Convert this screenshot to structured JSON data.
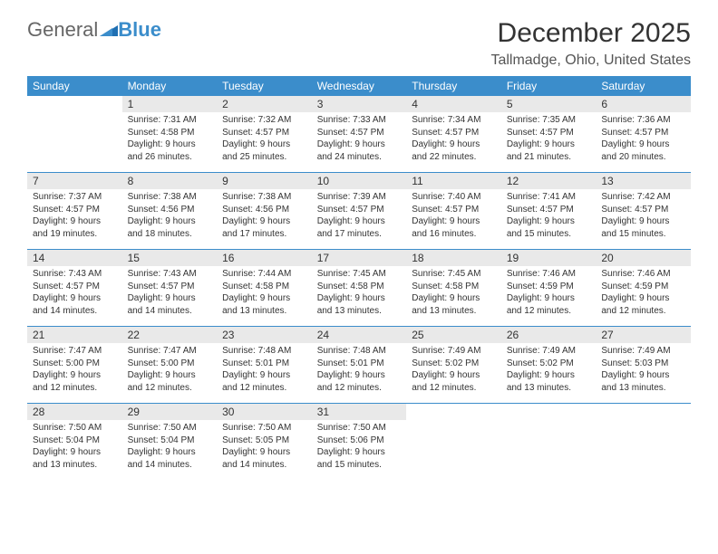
{
  "logo": {
    "general": "General",
    "blue": "Blue"
  },
  "title": "December 2025",
  "location": "Tallmadge, Ohio, United States",
  "colors": {
    "header_bg": "#3b8dcb",
    "header_fg": "#ffffff",
    "num_bg": "#e9e9e9",
    "divider": "#3b8dcb",
    "text": "#333333",
    "page_bg": "#ffffff"
  },
  "fonts": {
    "title_size": 30,
    "location_size": 16,
    "dow_size": 12,
    "daynum_size": 12,
    "body_size": 10
  },
  "dow": [
    "Sunday",
    "Monday",
    "Tuesday",
    "Wednesday",
    "Thursday",
    "Friday",
    "Saturday"
  ],
  "weeks": [
    {
      "nums": [
        "",
        "1",
        "2",
        "3",
        "4",
        "5",
        "6"
      ],
      "cells": [
        "",
        "Sunrise: 7:31 AM\nSunset: 4:58 PM\nDaylight: 9 hours and 26 minutes.",
        "Sunrise: 7:32 AM\nSunset: 4:57 PM\nDaylight: 9 hours and 25 minutes.",
        "Sunrise: 7:33 AM\nSunset: 4:57 PM\nDaylight: 9 hours and 24 minutes.",
        "Sunrise: 7:34 AM\nSunset: 4:57 PM\nDaylight: 9 hours and 22 minutes.",
        "Sunrise: 7:35 AM\nSunset: 4:57 PM\nDaylight: 9 hours and 21 minutes.",
        "Sunrise: 7:36 AM\nSunset: 4:57 PM\nDaylight: 9 hours and 20 minutes."
      ]
    },
    {
      "nums": [
        "7",
        "8",
        "9",
        "10",
        "11",
        "12",
        "13"
      ],
      "cells": [
        "Sunrise: 7:37 AM\nSunset: 4:57 PM\nDaylight: 9 hours and 19 minutes.",
        "Sunrise: 7:38 AM\nSunset: 4:56 PM\nDaylight: 9 hours and 18 minutes.",
        "Sunrise: 7:38 AM\nSunset: 4:56 PM\nDaylight: 9 hours and 17 minutes.",
        "Sunrise: 7:39 AM\nSunset: 4:57 PM\nDaylight: 9 hours and 17 minutes.",
        "Sunrise: 7:40 AM\nSunset: 4:57 PM\nDaylight: 9 hours and 16 minutes.",
        "Sunrise: 7:41 AM\nSunset: 4:57 PM\nDaylight: 9 hours and 15 minutes.",
        "Sunrise: 7:42 AM\nSunset: 4:57 PM\nDaylight: 9 hours and 15 minutes."
      ]
    },
    {
      "nums": [
        "14",
        "15",
        "16",
        "17",
        "18",
        "19",
        "20"
      ],
      "cells": [
        "Sunrise: 7:43 AM\nSunset: 4:57 PM\nDaylight: 9 hours and 14 minutes.",
        "Sunrise: 7:43 AM\nSunset: 4:57 PM\nDaylight: 9 hours and 14 minutes.",
        "Sunrise: 7:44 AM\nSunset: 4:58 PM\nDaylight: 9 hours and 13 minutes.",
        "Sunrise: 7:45 AM\nSunset: 4:58 PM\nDaylight: 9 hours and 13 minutes.",
        "Sunrise: 7:45 AM\nSunset: 4:58 PM\nDaylight: 9 hours and 13 minutes.",
        "Sunrise: 7:46 AM\nSunset: 4:59 PM\nDaylight: 9 hours and 12 minutes.",
        "Sunrise: 7:46 AM\nSunset: 4:59 PM\nDaylight: 9 hours and 12 minutes."
      ]
    },
    {
      "nums": [
        "21",
        "22",
        "23",
        "24",
        "25",
        "26",
        "27"
      ],
      "cells": [
        "Sunrise: 7:47 AM\nSunset: 5:00 PM\nDaylight: 9 hours and 12 minutes.",
        "Sunrise: 7:47 AM\nSunset: 5:00 PM\nDaylight: 9 hours and 12 minutes.",
        "Sunrise: 7:48 AM\nSunset: 5:01 PM\nDaylight: 9 hours and 12 minutes.",
        "Sunrise: 7:48 AM\nSunset: 5:01 PM\nDaylight: 9 hours and 12 minutes.",
        "Sunrise: 7:49 AM\nSunset: 5:02 PM\nDaylight: 9 hours and 12 minutes.",
        "Sunrise: 7:49 AM\nSunset: 5:02 PM\nDaylight: 9 hours and 13 minutes.",
        "Sunrise: 7:49 AM\nSunset: 5:03 PM\nDaylight: 9 hours and 13 minutes."
      ]
    },
    {
      "nums": [
        "28",
        "29",
        "30",
        "31",
        "",
        "",
        ""
      ],
      "cells": [
        "Sunrise: 7:50 AM\nSunset: 5:04 PM\nDaylight: 9 hours and 13 minutes.",
        "Sunrise: 7:50 AM\nSunset: 5:04 PM\nDaylight: 9 hours and 14 minutes.",
        "Sunrise: 7:50 AM\nSunset: 5:05 PM\nDaylight: 9 hours and 14 minutes.",
        "Sunrise: 7:50 AM\nSunset: 5:06 PM\nDaylight: 9 hours and 15 minutes.",
        "",
        "",
        ""
      ]
    }
  ]
}
